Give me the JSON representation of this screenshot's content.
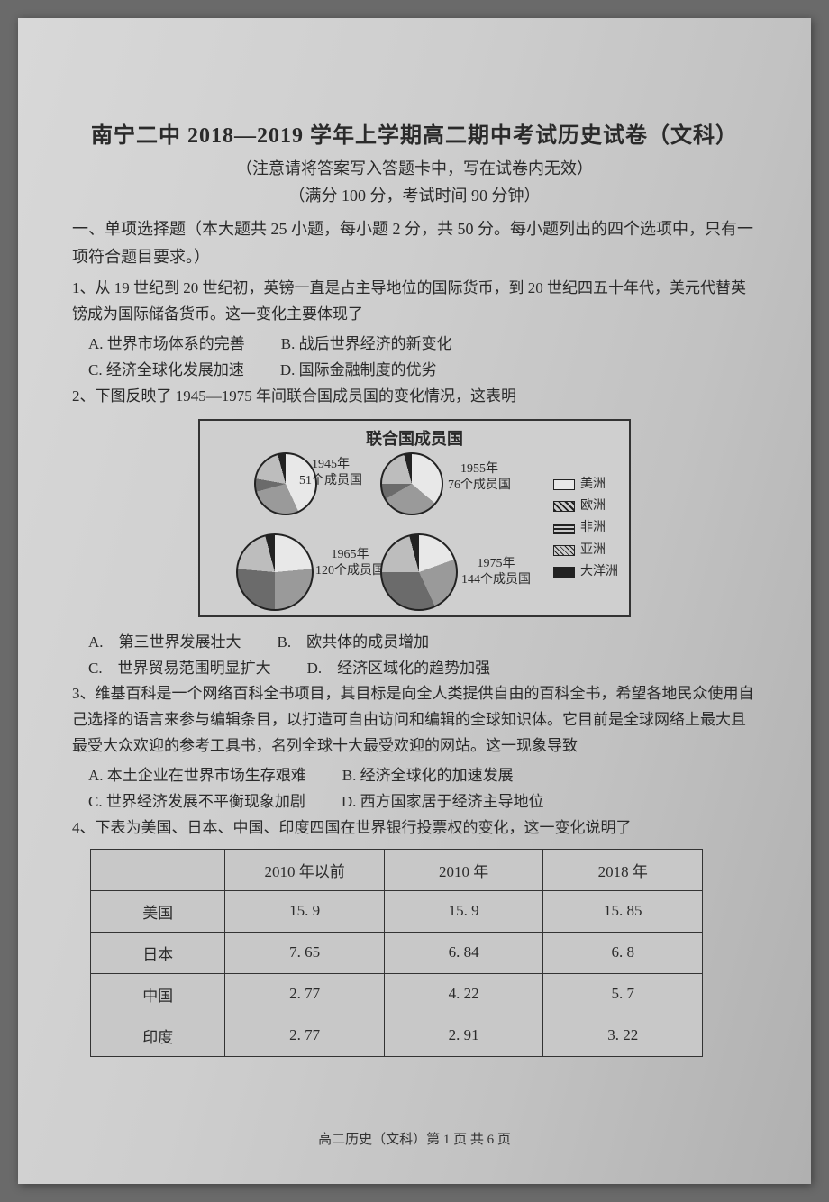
{
  "header": {
    "title": "南宁二中 2018—2019 学年上学期高二期中考试历史试卷（文科）",
    "subtitle": "（注意请将答案写入答题卡中，写在试卷内无效）",
    "score": "（满分 100 分，考试时间 90 分钟）"
  },
  "section1": {
    "heading": "一、单项选择题（本大题共 25 小题，每小题 2 分，共 50 分。每小题列出的四个选项中，只有一项符合题目要求。）"
  },
  "q1": {
    "stem": "1、从 19 世纪到 20 世纪初，英镑一直是占主导地位的国际货币，到 20 世纪四五十年代，美元代替英镑成为国际储备货币。这一变化主要体现了",
    "A": "A. 世界市场体系的完善",
    "B": "B. 战后世界经济的新变化",
    "C": "C. 经济全球化发展加速",
    "D": "D. 国际金融制度的优劣"
  },
  "q2": {
    "stem": "2、下图反映了 1945—1975 年间联合国成员国的变化情况，这表明",
    "A": "A.　第三世界发展壮大",
    "B": "B.　欧共体的成员增加",
    "C": "C.　世界贸易范围明显扩大",
    "D": "D.　经济区域化的趋势加强"
  },
  "chart": {
    "title": "联合国成员国",
    "pies": [
      {
        "year": "1945年",
        "members": "51个成员国"
      },
      {
        "year": "1955年",
        "members": "76个成员国"
      },
      {
        "year": "1965年",
        "members": "120个成员国"
      },
      {
        "year": "1975年",
        "members": "144个成员国"
      }
    ],
    "legend": [
      "美洲",
      "欧洲",
      "非洲",
      "亚洲",
      "大洋洲"
    ],
    "legend_patterns": {
      "americas": "#e8e8e8",
      "europe": "repeating-linear-gradient(45deg,#222 0 2px,#ccc 2px 5px)",
      "africa": "repeating-linear-gradient(0deg,#222 0 2px,#ccc 2px 4px)",
      "asia": "repeating-linear-gradient(45deg,#ccc 0 3px,#222 3px 4px),repeating-linear-gradient(-45deg,#ccc 0 3px,#222 3px 4px)",
      "oceania": "#222"
    },
    "pie_style": {
      "size_small": 70,
      "size_large": 86,
      "border_color": "#222"
    },
    "slices": {
      "1945": {
        "americas": 155,
        "europe": 100,
        "africa": 25,
        "asia": 65,
        "oceania": 15
      },
      "1955": {
        "americas": 130,
        "europe": 110,
        "africa": 30,
        "asia": 75,
        "oceania": 15
      },
      "1965": {
        "americas": 85,
        "europe": 95,
        "africa": 95,
        "asia": 70,
        "oceania": 15
      },
      "1975": {
        "americas": 70,
        "europe": 85,
        "africa": 115,
        "asia": 75,
        "oceania": 15
      }
    }
  },
  "q3": {
    "stem": "3、维基百科是一个网络百科全书项目，其目标是向全人类提供自由的百科全书，希望各地民众使用自己选择的语言来参与编辑条目，以打造可自由访问和编辑的全球知识体。它目前是全球网络上最大且最受大众欢迎的参考工具书，名列全球十大最受欢迎的网站。这一现象导致",
    "A": "A. 本土企业在世界市场生存艰难",
    "B": "B. 经济全球化的加速发展",
    "C": "C. 世界经济发展不平衡现象加剧",
    "D": "D. 西方国家居于经济主导地位"
  },
  "q4": {
    "stem": "4、下表为美国、日本、中国、印度四国在世界银行投票权的变化，这一变化说明了",
    "table": {
      "columns": [
        "",
        "2010 年以前",
        "2010 年",
        "2018 年"
      ],
      "rows": [
        [
          "美国",
          "15. 9",
          "15. 9",
          "15. 85"
        ],
        [
          "日本",
          "7. 65",
          "6. 84",
          "6. 8"
        ],
        [
          "中国",
          "2. 77",
          "4. 22",
          "5. 7"
        ],
        [
          "印度",
          "2. 77",
          "2. 91",
          "3. 22"
        ]
      ],
      "col_widths": [
        "22%",
        "26%",
        "26%",
        "26%"
      ]
    }
  },
  "footer": "高二历史（文科）第 1 页 共 6 页"
}
